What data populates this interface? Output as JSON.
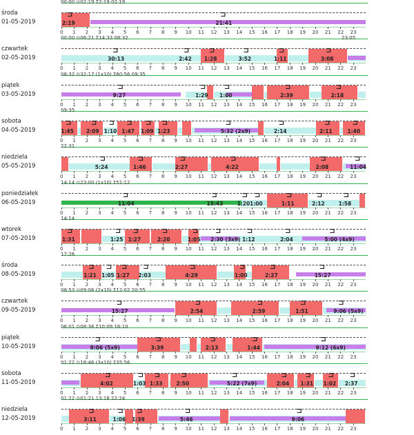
{
  "days": [
    {
      "name": "środa",
      "date": "01-05-2019",
      "header": {
        "left": "00:00",
        "clock": "⊙",
        "mid": "02:19",
        "sum": "Σ2:19",
        "right": "02:19"
      },
      "labels": [
        {
          "t": "2:19",
          "h": 0.6
        },
        {
          "t": "21:41",
          "h": 12.7
        }
      ],
      "red": [
        [
          0,
          2.3
        ]
      ],
      "cyan": [],
      "purple": [
        [
          2.3,
          24
        ]
      ],
      "green": []
    },
    {
      "name": "czwartek",
      "date": "02-05-2019",
      "header": {
        "left": "00:00",
        "clock": "⊙",
        "mid": "06:21",
        "sum": "Σ14:33",
        "right": "08:32",
        "extra": "23:05"
      },
      "labels": [
        {
          "t": "30:13",
          "h": 4.2
        },
        {
          "t": "2:42",
          "h": 9.8
        },
        {
          "t": "1:28",
          "h": 11.8
        },
        {
          "t": "3:52",
          "h": 14.5
        },
        {
          "t": "1:11",
          "h": 17.3
        },
        {
          "t": "3:08",
          "h": 21
        }
      ],
      "red": [
        [
          11,
          12.9
        ],
        [
          17,
          17.9
        ],
        [
          19.5,
          22.6
        ]
      ],
      "cyan": [
        [
          0,
          24
        ]
      ],
      "purple": [
        [
          22.6,
          24
        ]
      ],
      "green": []
    },
    {
      "name": "piątek",
      "date": "03-05-2019",
      "header": {
        "left": "08:32",
        "clock": "⊙",
        "mid": "32:17 (1x10)",
        "sum": "Σ60:56",
        "right": "09:35",
        "extra": ""
      },
      "labels": [
        {
          "t": "9:27",
          "h": 4.6
        },
        {
          "t": "1:29",
          "h": 11.1
        },
        {
          "t": "1:00",
          "h": 13
        },
        {
          "t": "2:39",
          "h": 17.8
        },
        {
          "t": "2:18",
          "h": 21.8
        }
      ],
      "red": [
        [
          11.5,
          12
        ],
        [
          15,
          16
        ],
        [
          16.2,
          19.6
        ],
        [
          20.5,
          23.4
        ]
      ],
      "cyan": [
        [
          9.8,
          24
        ]
      ],
      "purple": [
        [
          0,
          9.4
        ],
        [
          13,
          15
        ]
      ],
      "green": []
    },
    {
      "name": "sobota",
      "date": "04-05-2019",
      "header": {
        "left": "09:35",
        "clock": "",
        "mid": "",
        "sum": "",
        "right": "",
        "extra": ""
      },
      "labels": [
        {
          "t": "1:45",
          "h": 0.5
        },
        {
          "t": "2:09",
          "h": 2.5
        },
        {
          "t": "1:10",
          "h": 3.9
        },
        {
          "t": "1:47",
          "h": 5.3
        },
        {
          "t": "1:09",
          "h": 6.8
        },
        {
          "t": "1:23",
          "h": 8.1
        },
        {
          "t": "5:32 (2x9)",
          "h": 13.1
        },
        {
          "t": "2:14",
          "h": 17.3
        },
        {
          "t": "2:11",
          "h": 20.9
        },
        {
          "t": "1:40",
          "h": 23.1
        }
      ],
      "red": [
        [
          0,
          1.3
        ],
        [
          1.5,
          3.3
        ],
        [
          4.4,
          6.2
        ],
        [
          6.3,
          7.4
        ],
        [
          7.7,
          9.2
        ],
        [
          9.5,
          10.3
        ],
        [
          15.5,
          16
        ],
        [
          20.1,
          22
        ],
        [
          22.2,
          24
        ]
      ],
      "cyan": [
        [
          0,
          24
        ]
      ],
      "purple": [
        [
          10.5,
          16
        ]
      ],
      "green": []
    },
    {
      "name": "niedziela",
      "date": "05-05-2019",
      "header": {
        "left": "22:31",
        "clock": "",
        "mid": "",
        "sum": "",
        "right": "",
        "extra": ""
      },
      "labels": [
        {
          "t": "5:24",
          "h": 3.2
        },
        {
          "t": "1:46",
          "h": 6.2
        },
        {
          "t": "2:27",
          "h": 9.5
        },
        {
          "t": "4:22",
          "h": 13.5
        },
        {
          "t": "2:08",
          "h": 20.6
        },
        {
          "t": "11:04",
          "h": 23.3
        }
      ],
      "red": [
        [
          0,
          0.6
        ],
        [
          5.4,
          7.2
        ],
        [
          9,
          11.6
        ],
        [
          11.8,
          15.6
        ],
        [
          17,
          17.3
        ],
        [
          19.6,
          22.2
        ]
      ],
      "cyan": [
        [
          0,
          24
        ]
      ],
      "purple": [
        [
          22.4,
          24
        ]
      ],
      "green": []
    },
    {
      "name": "poniedziałek",
      "date": "06-05-2019",
      "header": {
        "left": "14:14",
        "clock": "⊙",
        "mid": "23:00 (1x10)",
        "sum": "Σ51:12",
        "right": "",
        "extra": ""
      },
      "labels": [
        {
          "t": "11:04",
          "h": 5
        },
        {
          "t": "15:43",
          "h": 12
        },
        {
          "t": "1:20",
          "h": 14.4
        },
        {
          "t": "1:00",
          "h": 15.4
        },
        {
          "t": "1:11",
          "h": 17.9
        },
        {
          "t": "2:12",
          "h": 20.3
        },
        {
          "t": "1:58",
          "h": 22.4
        }
      ],
      "red": [
        [
          16.2,
          19.5
        ],
        [
          23.5,
          24
        ]
      ],
      "cyan": [
        [
          14,
          24
        ]
      ],
      "purple": [],
      "green": [
        [
          0,
          14.2
        ]
      ]
    },
    {
      "name": "wtorek",
      "date": "07-05-2019",
      "header": {
        "left": "14:14",
        "clock": "",
        "mid": "",
        "sum": "",
        "right": "",
        "extra": ""
      },
      "labels": [
        {
          "t": "1:31",
          "h": 0.6
        },
        {
          "t": "1:25",
          "h": 4.4
        },
        {
          "t": "1:27",
          "h": 5.8
        },
        {
          "t": "2:20",
          "h": 8.1
        },
        {
          "t": "1:05",
          "h": 10.5
        },
        {
          "t": "2:30 (3x9)",
          "h": 12.3
        },
        {
          "t": "1:12",
          "h": 14.8
        },
        {
          "t": "2:04",
          "h": 17.8
        },
        {
          "t": "5:00 (4x9)",
          "h": 21.3
        }
      ],
      "red": [
        [
          0,
          1.5
        ],
        [
          1.6,
          3.2
        ],
        [
          5,
          7
        ],
        [
          7.1,
          9.5
        ],
        [
          10,
          10.9
        ]
      ],
      "cyan": [
        [
          0,
          24
        ]
      ],
      "purple": [
        [
          11,
          14
        ],
        [
          19,
          24
        ]
      ],
      "green": []
    },
    {
      "name": "środa",
      "date": "08-05-2019",
      "header": {
        "left": "17:26",
        "clock": "",
        "mid": "",
        "sum": "",
        "right": "",
        "extra": ""
      },
      "labels": [
        {
          "t": "1:21",
          "h": 2.3
        },
        {
          "t": "1:05",
          "h": 3.7
        },
        {
          "t": "1:27",
          "h": 4.9
        },
        {
          "t": "2:03",
          "h": 6.6
        },
        {
          "t": "4:29",
          "h": 10.3
        },
        {
          "t": "1:00",
          "h": 14.2
        },
        {
          "t": "2:27",
          "h": 16.6
        },
        {
          "t": "15:27",
          "h": 20.5
        }
      ],
      "red": [
        [
          1.7,
          3.2
        ],
        [
          4.3,
          6.2
        ],
        [
          8.2,
          12.3
        ],
        [
          13.6,
          14.6
        ],
        [
          15,
          18
        ]
      ],
      "cyan": [
        [
          0,
          18
        ]
      ],
      "purple": [
        [
          18.5,
          24
        ]
      ],
      "green": []
    },
    {
      "name": "czwartek",
      "date": "09-05-2019",
      "header": {
        "left": "08:53",
        "clock": "⊙",
        "mid": "09:06 (2x10)",
        "sum": "Σ12:02",
        "right": "20:55",
        "extra": ""
      },
      "labels": [
        {
          "t": "15:27",
          "h": 4.5
        },
        {
          "t": "2:54",
          "h": 10.7
        },
        {
          "t": "2:59",
          "h": 15.6
        },
        {
          "t": "1:51",
          "h": 19
        },
        {
          "t": "9:06 (5x9)",
          "h": 22
        }
      ],
      "red": [
        [
          9,
          12.3
        ],
        [
          13.4,
          17.2
        ],
        [
          18,
          20.6
        ]
      ],
      "cyan": [
        [
          9,
          24
        ]
      ],
      "purple": [
        [
          0,
          8.9
        ],
        [
          20.9,
          24
        ]
      ],
      "green": []
    },
    {
      "name": "piątek",
      "date": "10-05-2019",
      "header": {
        "left": "06:01",
        "clock": "⊙",
        "mid": "08:36",
        "sum": "Σ10:09",
        "right": "16:10",
        "extra": ""
      },
      "labels": [
        {
          "t": "9:06 (5x9)",
          "h": 2.8
        },
        {
          "t": "3:39",
          "h": 7.6
        },
        {
          "t": "2:13",
          "h": 11.9
        },
        {
          "t": "1:44",
          "h": 15.2
        },
        {
          "t": "9:12 (6x9)",
          "h": 20.6
        }
      ],
      "red": [
        [
          6,
          9.4
        ],
        [
          10.1,
          10.7
        ],
        [
          11,
          13
        ],
        [
          13.5,
          15.9
        ]
      ],
      "cyan": [
        [
          0,
          24
        ]
      ],
      "purple": [
        [
          0,
          6
        ],
        [
          16,
          24
        ]
      ],
      "green": []
    },
    {
      "name": "sobota",
      "date": "11-05-2019",
      "header": {
        "left": "01:22",
        "clock": "⊙",
        "mid": "18:46 (3x10)",
        "sum": "Σ35:56",
        "right": "",
        "extra": ""
      },
      "labels": [
        {
          "t": "4:02",
          "h": 3.6
        },
        {
          "t": "1:03",
          "h": 6.2
        },
        {
          "t": "1:33",
          "h": 7.5
        },
        {
          "t": "2:50",
          "h": 9.6
        },
        {
          "t": "5:22 (7x9)",
          "h": 13.6
        },
        {
          "t": "2:04",
          "h": 17.5
        },
        {
          "t": "1:31",
          "h": 19.4
        },
        {
          "t": "1:02",
          "h": 21.2
        },
        {
          "t": "2:37",
          "h": 22.9
        }
      ],
      "red": [
        [
          1.5,
          5.7
        ],
        [
          6.6,
          8.5
        ],
        [
          8.6,
          11.6
        ],
        [
          16.2,
          18.4
        ],
        [
          18.6,
          20
        ],
        [
          20.6,
          21.9
        ]
      ],
      "cyan": [
        [
          0,
          24
        ]
      ],
      "purple": [
        [
          0,
          1.4
        ],
        [
          11.7,
          16
        ]
      ],
      "green": []
    },
    {
      "name": "niedziela",
      "date": "12-05-2019",
      "header": {
        "left": "01:22",
        "clock": "⊙",
        "mid": "01:21",
        "sum": "13:18",
        "right": "22:24",
        "extra": ""
      },
      "labels": [
        {
          "t": "3:11",
          "h": 2.3
        },
        {
          "t": "1:06",
          "h": 4.6
        },
        {
          "t": "1:39",
          "h": 6.1
        },
        {
          "t": "5:46",
          "h": 9.9
        },
        {
          "t": "9:06",
          "h": 18.7
        }
      ],
      "red": [
        [
          0.6,
          3.8
        ],
        [
          5,
          5.7
        ],
        [
          5.8,
          7.6
        ],
        [
          12.5,
          13.2
        ],
        [
          22.4,
          24
        ]
      ],
      "cyan": [
        [
          0,
          24
        ]
      ],
      "purple": [
        [
          7.7,
          12.5
        ],
        [
          13.3,
          22.4
        ]
      ],
      "green": []
    }
  ],
  "axis": {
    "ticks": [
      "0",
      "1",
      "2",
      "3",
      "4",
      "5",
      "6",
      "7",
      "8",
      "9",
      "10",
      "11",
      "12",
      "13",
      "14",
      "15",
      "16",
      "17",
      "18",
      "19",
      "20",
      "21",
      "22",
      "23"
    ]
  },
  "icons": {
    "sleep": "bed-icon",
    "clock": "clock-icon"
  }
}
